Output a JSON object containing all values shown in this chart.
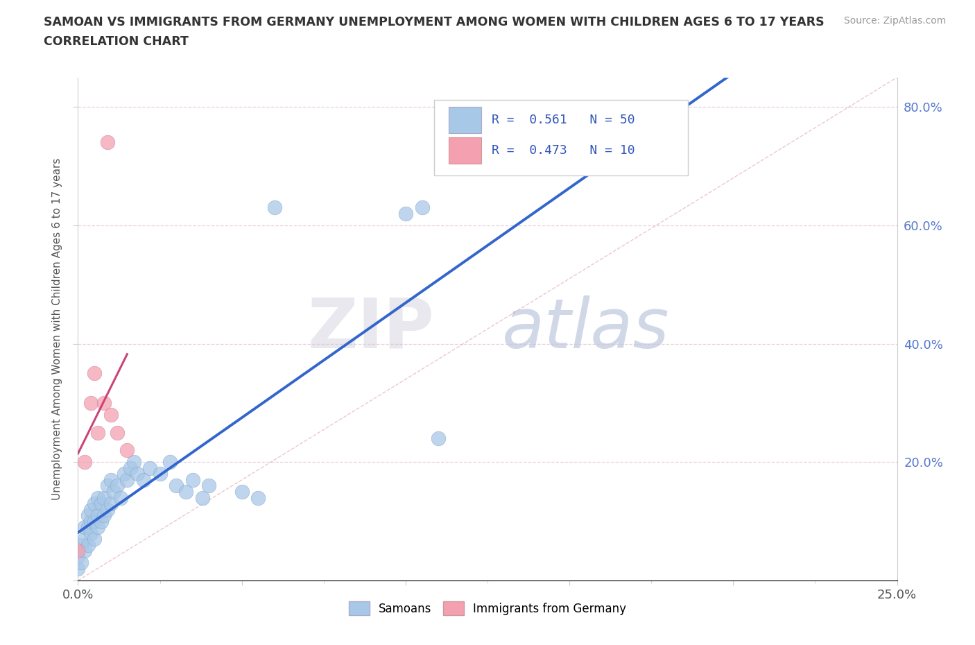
{
  "title_line1": "SAMOAN VS IMMIGRANTS FROM GERMANY UNEMPLOYMENT AMONG WOMEN WITH CHILDREN AGES 6 TO 17 YEARS",
  "title_line2": "CORRELATION CHART",
  "source_text": "Source: ZipAtlas.com",
  "ylabel": "Unemployment Among Women with Children Ages 6 to 17 years",
  "xlim": [
    0.0,
    0.25
  ],
  "ylim": [
    0.0,
    0.85
  ],
  "R_samoans": 0.561,
  "N_samoans": 50,
  "R_germany": 0.473,
  "N_germany": 10,
  "samoans_color": "#a8c8e8",
  "germany_color": "#f4a0b0",
  "regression_blue_color": "#3366cc",
  "regression_pink_color": "#cc4477",
  "watermark_zip": "ZIP",
  "watermark_atlas": "atlas",
  "legend_R_color": "#3355bb",
  "samoans_x": [
    0.0,
    0.0,
    0.001,
    0.001,
    0.002,
    0.002,
    0.002,
    0.003,
    0.003,
    0.003,
    0.004,
    0.004,
    0.004,
    0.005,
    0.005,
    0.005,
    0.006,
    0.006,
    0.006,
    0.007,
    0.007,
    0.008,
    0.008,
    0.009,
    0.009,
    0.01,
    0.01,
    0.011,
    0.012,
    0.013,
    0.014,
    0.015,
    0.016,
    0.017,
    0.018,
    0.02,
    0.022,
    0.025,
    0.028,
    0.03,
    0.033,
    0.035,
    0.038,
    0.04,
    0.05,
    0.055,
    0.06,
    0.1,
    0.105,
    0.11
  ],
  "samoans_y": [
    0.02,
    0.04,
    0.03,
    0.06,
    0.05,
    0.07,
    0.09,
    0.06,
    0.09,
    0.11,
    0.08,
    0.1,
    0.12,
    0.07,
    0.1,
    0.13,
    0.09,
    0.11,
    0.14,
    0.1,
    0.13,
    0.11,
    0.14,
    0.12,
    0.16,
    0.13,
    0.17,
    0.15,
    0.16,
    0.14,
    0.18,
    0.17,
    0.19,
    0.2,
    0.18,
    0.17,
    0.19,
    0.18,
    0.2,
    0.16,
    0.15,
    0.17,
    0.14,
    0.16,
    0.15,
    0.14,
    0.63,
    0.62,
    0.63,
    0.24
  ],
  "germany_x": [
    0.0,
    0.002,
    0.004,
    0.005,
    0.006,
    0.008,
    0.009,
    0.01,
    0.012,
    0.015
  ],
  "germany_y": [
    0.05,
    0.2,
    0.3,
    0.35,
    0.25,
    0.3,
    0.74,
    0.28,
    0.25,
    0.22
  ]
}
